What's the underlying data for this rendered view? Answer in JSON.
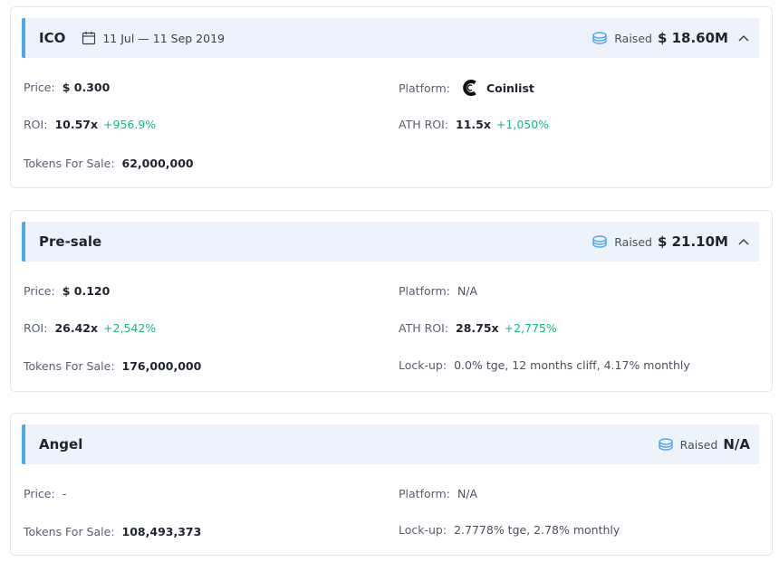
{
  "colors": {
    "accent_bar": "#4aa8ec",
    "header_bg": "#edf2fb",
    "positive": "#17b978",
    "coins_icon": "#4aa8ec"
  },
  "ico": {
    "name": "ICO",
    "date": "11 Jul — 11 Sep 2019",
    "raised_label": "Raised",
    "raised_amount": "$ 18.60M",
    "price_label": "Price:",
    "price_value": "$ 0.300",
    "roi_label": "ROI:",
    "roi_value": "10.57x",
    "roi_pct": "+956.9%",
    "tokens_label": "Tokens For Sale:",
    "tokens_value": "62,000,000",
    "platform_label": "Platform:",
    "platform_value": "Coinlist",
    "platform_icon": "coinlist-logo-icon",
    "ath_label": "ATH ROI:",
    "ath_value": "11.5x",
    "ath_pct": "+1,050%"
  },
  "presale": {
    "name": "Pre-sale",
    "raised_label": "Raised",
    "raised_amount": "$ 21.10M",
    "price_label": "Price:",
    "price_value": "$ 0.120",
    "roi_label": "ROI:",
    "roi_value": "26.42x",
    "roi_pct": "+2,542%",
    "tokens_label": "Tokens For Sale:",
    "tokens_value": "176,000,000",
    "platform_label": "Platform:",
    "platform_value": "N/A",
    "ath_label": "ATH ROI:",
    "ath_value": "28.75x",
    "ath_pct": "+2,775%",
    "lockup_label": "Lock-up:",
    "lockup_value": "0.0% tge, 12 months cliff, 4.17% monthly"
  },
  "angel": {
    "name": "Angel",
    "raised_label": "Raised",
    "raised_amount": "N/A",
    "price_label": "Price:",
    "price_value": "-",
    "tokens_label": "Tokens For Sale:",
    "tokens_value": "108,493,373",
    "platform_label": "Platform:",
    "platform_value": "N/A",
    "lockup_label": "Lock-up:",
    "lockup_value": "2.7778% tge, 2.78% monthly"
  }
}
